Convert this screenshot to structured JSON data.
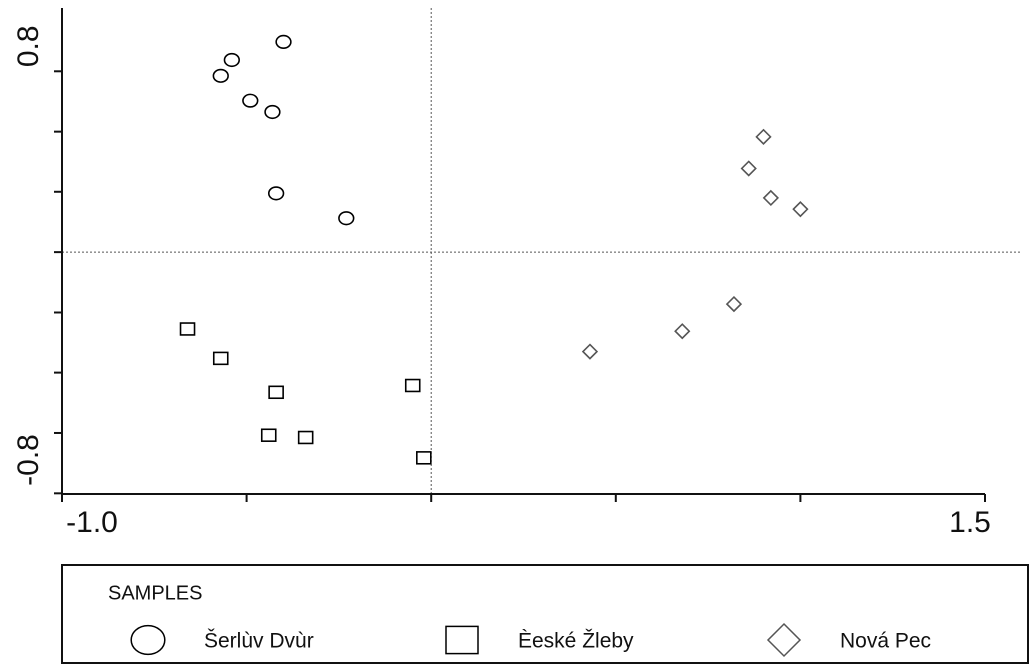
{
  "chart_data": {
    "type": "scatter",
    "xlim": [
      -1.0,
      1.5
    ],
    "xticks": [
      {
        "value": -1.0,
        "label": "-1.0"
      },
      {
        "value": 1.5,
        "label": "1.5"
      }
    ],
    "xminorticks": [
      -0.5,
      0,
      0.5,
      1.0
    ],
    "ylim": [
      -1.07,
      1.08
    ],
    "yticks": [
      -0.8,
      0.8
    ],
    "yminorticks": [
      -1.067,
      -0.533,
      -0.267,
      0,
      0.267,
      0.533
    ],
    "zero_lines": true,
    "legend_title": "SAMPLES",
    "series": [
      {
        "name": "Šerlùv Dvùr",
        "marker": "circle",
        "color": "#000000",
        "x": [
          -0.4,
          -0.54,
          -0.57,
          -0.49,
          -0.43,
          -0.42,
          -0.23
        ],
        "y": [
          0.93,
          0.85,
          0.78,
          0.67,
          0.62,
          0.26,
          0.15
        ]
      },
      {
        "name": "Èeské Žleby",
        "marker": "square",
        "color": "#000000",
        "x": [
          -0.66,
          -0.57,
          -0.42,
          -0.05,
          -0.44,
          -0.34,
          -0.02
        ],
        "y": [
          -0.34,
          -0.47,
          -0.62,
          -0.59,
          -0.81,
          -0.82,
          -0.91
        ]
      },
      {
        "name": "Nová Pec",
        "marker": "diamond",
        "color": "#555555",
        "x": [
          0.9,
          0.86,
          0.92,
          1.0,
          0.82,
          0.68,
          0.43
        ],
        "y": [
          0.51,
          0.37,
          0.24,
          0.19,
          -0.23,
          -0.35,
          -0.44
        ]
      }
    ]
  }
}
